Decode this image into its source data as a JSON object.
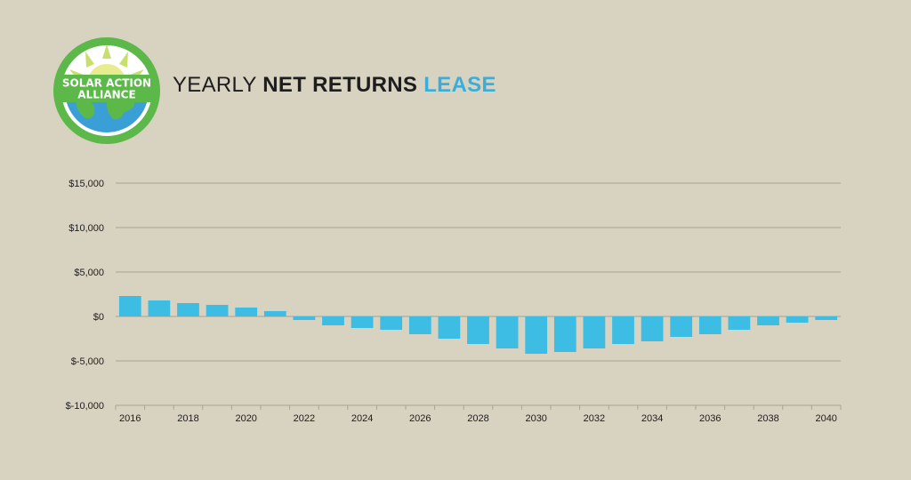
{
  "logo": {
    "line1": "SOLAR ACTION",
    "line2": "ALLIANCE"
  },
  "header": {
    "title_part1": "YEARLY ",
    "title_part2": "NET RETURNS ",
    "title_part3": "LEASE"
  },
  "colors": {
    "background": "#d8d2c1",
    "bar": "#3dbde3",
    "accent": "#3aaed8",
    "gridline": "#a9a391",
    "logo_green": "#5cb848",
    "logo_blue": "#3a9fd6"
  },
  "chart_data": {
    "type": "bar",
    "title": "YEARLY NET RETURNS LEASE",
    "xlabel": "",
    "ylabel": "",
    "ylim": [
      -10000,
      15000
    ],
    "yticks": [
      15000,
      10000,
      5000,
      0,
      -5000,
      -10000
    ],
    "ytick_labels": [
      "$15,000",
      "$10,000",
      "$5,000",
      "$0",
      "$-5,000",
      "$-10,000"
    ],
    "xtick_labels": [
      "2016",
      "2018",
      "2020",
      "2022",
      "2024",
      "2026",
      "2028",
      "2030",
      "2032",
      "2034",
      "2036",
      "2038",
      "2040"
    ],
    "grid": true,
    "legend": "none",
    "categories": [
      "2016",
      "2017",
      "2018",
      "2019",
      "2020",
      "2021",
      "2022",
      "2023",
      "2024",
      "2025",
      "2026",
      "2027",
      "2028",
      "2029",
      "2030",
      "2031",
      "2032",
      "2033",
      "2034",
      "2035",
      "2036",
      "2037",
      "2038",
      "2039",
      "2040"
    ],
    "values": [
      2300,
      1800,
      1500,
      1300,
      1000,
      600,
      -400,
      -1000,
      -1300,
      -1500,
      -2000,
      -2500,
      -3100,
      -3600,
      -4200,
      -4000,
      -3600,
      -3100,
      -2800,
      -2300,
      -2000,
      -1500,
      -1000,
      -700,
      -400
    ]
  }
}
